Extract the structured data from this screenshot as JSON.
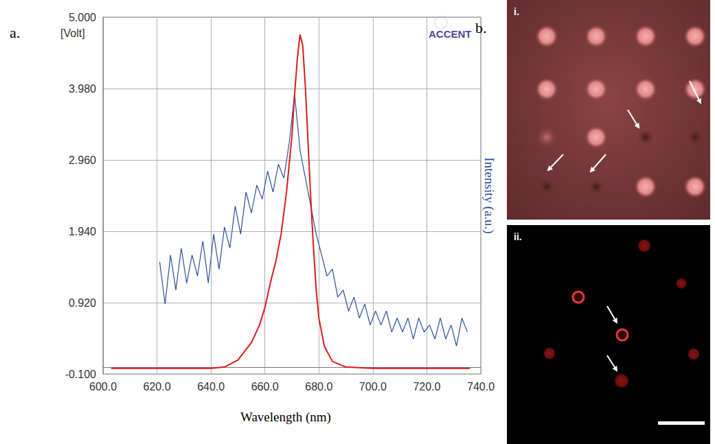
{
  "chart_data": {
    "type": "line",
    "xlabel": "Wavelength (nm)",
    "ylabel": "[Volt]",
    "y2label": "Intensity (a.u.)",
    "annotation": "ACCENT",
    "xlim": [
      600,
      740
    ],
    "xticks": [
      {
        "value": 600,
        "label": "600.0"
      },
      {
        "value": 620,
        "label": "620.0"
      },
      {
        "value": 640,
        "label": "640.0"
      },
      {
        "value": 660,
        "label": "660.0"
      },
      {
        "value": 680,
        "label": "680.0"
      },
      {
        "value": 700,
        "label": "700.0"
      },
      {
        "value": 720,
        "label": "720.0"
      },
      {
        "value": 740,
        "label": "740.0"
      }
    ],
    "ylim": [
      -0.1,
      5
    ],
    "yticks": [
      {
        "value": -0.1,
        "label": "-0.100"
      },
      {
        "value": 0.92,
        "label": "0.920"
      },
      {
        "value": 1.94,
        "label": "1.940"
      },
      {
        "value": 2.96,
        "label": "2.960"
      },
      {
        "value": 3.98,
        "label": "3.980"
      },
      {
        "value": 5,
        "label": "5.000"
      }
    ],
    "grid": true,
    "series": [
      {
        "color": "#e01818",
        "x": [
          603,
          610,
          620,
          630,
          640,
          645,
          650,
          655,
          658,
          660,
          662,
          664,
          666,
          668,
          670,
          671,
          672,
          673,
          674,
          675,
          676,
          677,
          678,
          679,
          680,
          682,
          685,
          690,
          700,
          710,
          720,
          730,
          736
        ],
        "values": [
          -0.02,
          -0.02,
          -0.02,
          -0.02,
          -0.02,
          0.0,
          0.1,
          0.35,
          0.6,
          0.85,
          1.2,
          1.5,
          1.9,
          2.5,
          3.3,
          3.9,
          4.4,
          4.75,
          4.6,
          4.0,
          3.2,
          2.4,
          1.7,
          1.1,
          0.7,
          0.3,
          0.08,
          0.0,
          -0.02,
          -0.02,
          -0.02,
          -0.02,
          -0.02
        ]
      },
      {
        "color": "#2a4d9e",
        "x": [
          621,
          623,
          625,
          627,
          629,
          631,
          633,
          635,
          637,
          639,
          641,
          643,
          645,
          647,
          649,
          651,
          653,
          655,
          657,
          659,
          661,
          663,
          665,
          667,
          669,
          671,
          673,
          675,
          677,
          679,
          681,
          683,
          685,
          687,
          689,
          691,
          693,
          695,
          697,
          699,
          701,
          703,
          705,
          707,
          709,
          711,
          713,
          715,
          717,
          719,
          721,
          723,
          725,
          727,
          729,
          731,
          733,
          735
        ],
        "values": [
          1.5,
          0.9,
          1.6,
          1.1,
          1.7,
          1.2,
          1.6,
          1.3,
          1.8,
          1.2,
          1.9,
          1.4,
          2.0,
          1.7,
          2.3,
          1.9,
          2.5,
          2.2,
          2.6,
          2.4,
          2.8,
          2.5,
          2.9,
          2.7,
          3.2,
          3.9,
          3.1,
          2.7,
          2.3,
          1.9,
          1.6,
          1.3,
          1.4,
          1.0,
          1.1,
          0.8,
          1.0,
          0.7,
          0.9,
          0.6,
          0.8,
          0.6,
          0.8,
          0.5,
          0.7,
          0.5,
          0.7,
          0.4,
          0.7,
          0.5,
          0.6,
          0.4,
          0.7,
          0.4,
          0.6,
          0.3,
          0.7,
          0.5
        ]
      }
    ]
  },
  "panel_labels": [
    "a.",
    "b."
  ],
  "images": [
    {
      "label": "i."
    },
    {
      "label": "ii."
    }
  ]
}
